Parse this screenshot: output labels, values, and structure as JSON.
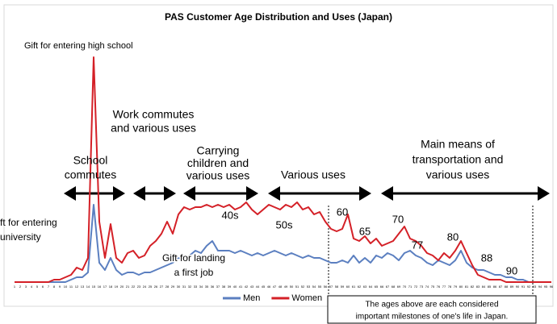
{
  "chart_data": {
    "type": "line",
    "title": "PAS Customer Age Distribution and Uses (Japan)",
    "x": [
      1,
      2,
      3,
      4,
      5,
      6,
      7,
      8,
      9,
      10,
      11,
      12,
      13,
      14,
      15,
      16,
      17,
      18,
      19,
      20,
      21,
      22,
      23,
      24,
      25,
      26,
      27,
      28,
      29,
      30,
      31,
      32,
      33,
      34,
      35,
      36,
      37,
      38,
      39,
      40,
      41,
      42,
      43,
      44,
      45,
      46,
      47,
      48,
      49,
      50,
      51,
      52,
      53,
      54,
      55,
      56,
      57,
      58,
      59,
      60,
      61,
      62,
      63,
      64,
      65,
      66,
      67,
      68,
      69,
      70,
      71,
      72,
      73,
      74,
      75,
      76,
      77,
      78,
      79,
      80,
      81,
      82,
      83,
      84,
      85,
      86,
      87,
      88,
      89,
      90,
      91,
      92,
      93,
      94,
      95,
      96
    ],
    "xlim": [
      1,
      96
    ],
    "xticks": [
      1,
      2,
      3,
      4,
      5,
      6,
      7,
      8,
      9,
      10,
      11,
      12,
      13,
      14,
      15,
      16,
      17,
      18,
      19,
      20,
      21,
      22,
      23,
      24,
      25,
      26,
      27,
      28,
      29,
      30,
      31,
      32,
      33,
      34,
      35,
      36,
      37,
      38,
      39,
      40,
      41,
      42,
      43,
      44,
      45,
      46,
      47,
      48,
      49,
      50,
      51,
      52,
      53,
      54,
      55,
      56,
      57,
      58,
      59,
      60,
      61,
      62,
      63,
      64,
      65,
      66,
      67,
      68,
      69,
      70,
      71,
      72,
      73,
      74,
      75,
      76,
      77,
      78,
      79,
      80,
      81,
      82,
      83,
      84,
      85,
      86,
      87,
      88,
      89,
      90,
      91,
      92,
      93,
      94,
      95,
      96
    ],
    "ylim": [
      0,
      100
    ],
    "series": [
      {
        "name": "Men",
        "color": "#5b7fc0",
        "values": [
          0,
          0,
          0,
          0,
          0,
          0,
          0,
          0,
          0,
          0,
          1,
          2,
          2,
          4,
          32,
          8,
          5,
          10,
          5,
          3,
          4,
          4,
          3,
          4,
          4,
          5,
          6,
          7,
          8,
          10,
          10,
          11,
          13,
          12,
          15,
          17,
          13,
          13,
          13,
          12,
          13,
          12,
          11,
          12,
          11,
          12,
          13,
          12,
          11,
          12,
          11,
          10,
          11,
          10,
          10,
          9,
          8,
          8,
          9,
          8,
          11,
          8,
          10,
          8,
          11,
          10,
          12,
          11,
          9,
          12,
          13,
          11,
          10,
          8,
          7,
          9,
          8,
          7,
          9,
          13,
          8,
          6,
          5,
          5,
          4,
          3,
          3,
          2,
          2,
          1,
          1,
          0,
          0,
          0,
          0,
          0
        ]
      },
      {
        "name": "Women",
        "color": "#d42027",
        "values": [
          0,
          0,
          0,
          0,
          0,
          0,
          0,
          1,
          1,
          2,
          3,
          6,
          5,
          10,
          93,
          25,
          10,
          24,
          10,
          8,
          12,
          13,
          10,
          11,
          15,
          17,
          20,
          25,
          20,
          28,
          31,
          30,
          31,
          31,
          32,
          31,
          32,
          31,
          32,
          30,
          31,
          33,
          30,
          28,
          30,
          32,
          31,
          30,
          32,
          31,
          33,
          30,
          31,
          28,
          29,
          25,
          22,
          21,
          22,
          28,
          18,
          17,
          19,
          16,
          18,
          15,
          16,
          17,
          20,
          23,
          18,
          17,
          15,
          12,
          11,
          9,
          12,
          10,
          13,
          17,
          12,
          7,
          3,
          2,
          1,
          1,
          1,
          0,
          0,
          0,
          0,
          0,
          0,
          0,
          0,
          0
        ]
      }
    ],
    "annotations": [
      [
        "Gift for entering high school"
      ],
      [
        "Work commutes",
        "and various uses"
      ],
      [
        "School",
        "commutes"
      ],
      [
        "Carrying",
        "children and",
        "various uses"
      ],
      [
        "Various uses"
      ],
      [
        "Main means of",
        "transportation and",
        "various uses"
      ],
      [
        "40s"
      ],
      [
        "50s"
      ],
      [
        "60"
      ],
      [
        "65"
      ],
      [
        "70"
      ],
      [
        "77"
      ],
      [
        "80"
      ],
      [
        "88"
      ],
      [
        "90"
      ],
      [
        "ft for entering",
        "university"
      ],
      [
        "Gift for landing",
        "a first job"
      ],
      [
        "The ages above are each considered",
        "important milestones of one's life in Japan."
      ]
    ]
  }
}
